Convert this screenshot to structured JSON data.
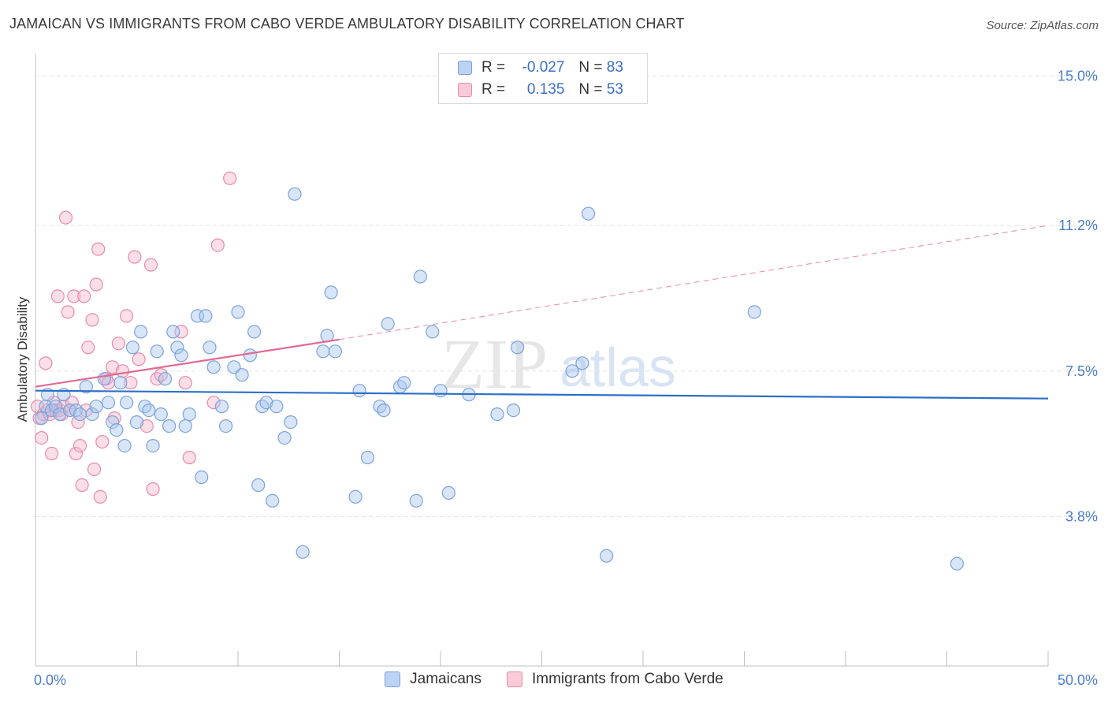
{
  "header": {
    "title": "JAMAICAN VS IMMIGRANTS FROM CABO VERDE AMBULATORY DISABILITY CORRELATION CHART",
    "source": "Source: ZipAtlas.com"
  },
  "legend": {
    "rows": [
      {
        "r_label": "R =",
        "r_value": "-0.027",
        "n_label": "N =",
        "n_value": "83"
      },
      {
        "r_label": "R =",
        "r_value": "0.135",
        "n_label": "N =",
        "n_value": "53"
      }
    ],
    "bottom": [
      "Jamaicans",
      "Immigrants from Cabo Verde"
    ]
  },
  "colors": {
    "blue_fill": "#a9c6ee",
    "blue_stroke": "#7aa3dc",
    "blue_line": "#2c6fc7",
    "pink_fill": "#f6b8cc",
    "pink_stroke": "#e88aa9",
    "pink_line": "#e06a94",
    "grid": "#e3e3e3",
    "tick_text": "#4a7cc9"
  },
  "watermark": {
    "zip": "ZIP",
    "atlas": "atlas"
  },
  "chart_data": {
    "type": "scatter",
    "title": "JAMAICAN VS IMMIGRANTS FROM CABO VERDE AMBULATORY DISABILITY CORRELATION CHART",
    "xlabel": "",
    "ylabel": "Ambulatory Disability",
    "xlim": [
      0,
      50
    ],
    "ylim": [
      0,
      15
    ],
    "x_tick_labels": [
      "0.0%",
      "50.0%"
    ],
    "y_ticks": [
      3.8,
      7.5,
      11.2,
      15.0
    ],
    "y_tick_labels": [
      "3.8%",
      "7.5%",
      "11.2%",
      "15.0%"
    ],
    "grid": true,
    "legend_position": "top-center",
    "series": [
      {
        "name": "Jamaicans",
        "color": "#a9c6ee",
        "r": -0.027,
        "n": 83,
        "trend": {
          "x": [
            0,
            50
          ],
          "y": [
            7.0,
            6.8
          ]
        },
        "points": [
          [
            0.3,
            6.3
          ],
          [
            0.5,
            6.6
          ],
          [
            0.6,
            6.9
          ],
          [
            0.8,
            6.5
          ],
          [
            1.0,
            6.6
          ],
          [
            1.2,
            6.4
          ],
          [
            1.4,
            6.9
          ],
          [
            1.7,
            6.5
          ],
          [
            2.0,
            6.5
          ],
          [
            2.2,
            6.4
          ],
          [
            2.5,
            7.1
          ],
          [
            2.8,
            6.4
          ],
          [
            3.0,
            6.6
          ],
          [
            3.4,
            7.3
          ],
          [
            3.6,
            6.7
          ],
          [
            3.8,
            6.2
          ],
          [
            4.0,
            6.0
          ],
          [
            4.2,
            7.2
          ],
          [
            4.4,
            5.6
          ],
          [
            4.5,
            6.7
          ],
          [
            4.8,
            8.1
          ],
          [
            5.0,
            6.2
          ],
          [
            5.2,
            8.5
          ],
          [
            5.4,
            6.6
          ],
          [
            5.6,
            6.5
          ],
          [
            5.8,
            5.6
          ],
          [
            6.0,
            8.0
          ],
          [
            6.2,
            6.4
          ],
          [
            6.4,
            7.3
          ],
          [
            6.6,
            6.1
          ],
          [
            6.8,
            8.5
          ],
          [
            7.0,
            8.1
          ],
          [
            7.2,
            7.9
          ],
          [
            7.4,
            6.1
          ],
          [
            7.6,
            6.4
          ],
          [
            8.0,
            8.9
          ],
          [
            8.2,
            4.8
          ],
          [
            8.4,
            8.9
          ],
          [
            8.6,
            8.1
          ],
          [
            8.8,
            7.6
          ],
          [
            9.2,
            6.6
          ],
          [
            9.4,
            6.1
          ],
          [
            9.8,
            7.6
          ],
          [
            10.0,
            9.0
          ],
          [
            10.2,
            7.4
          ],
          [
            10.6,
            7.9
          ],
          [
            10.8,
            8.5
          ],
          [
            11.0,
            4.6
          ],
          [
            11.2,
            6.6
          ],
          [
            11.4,
            6.7
          ],
          [
            11.7,
            4.2
          ],
          [
            11.9,
            6.6
          ],
          [
            12.3,
            5.8
          ],
          [
            12.6,
            6.2
          ],
          [
            12.8,
            12.0
          ],
          [
            13.2,
            2.9
          ],
          [
            14.2,
            8.0
          ],
          [
            14.4,
            8.4
          ],
          [
            14.6,
            9.5
          ],
          [
            14.8,
            8.0
          ],
          [
            15.8,
            4.3
          ],
          [
            16.0,
            7.0
          ],
          [
            16.4,
            5.3
          ],
          [
            17.0,
            6.6
          ],
          [
            17.2,
            6.5
          ],
          [
            17.4,
            8.7
          ],
          [
            18.0,
            7.1
          ],
          [
            18.2,
            7.2
          ],
          [
            18.8,
            4.2
          ],
          [
            19.0,
            9.9
          ],
          [
            19.6,
            8.5
          ],
          [
            20.0,
            7.0
          ],
          [
            20.4,
            4.4
          ],
          [
            21.4,
            6.9
          ],
          [
            22.8,
            6.4
          ],
          [
            23.6,
            6.5
          ],
          [
            23.8,
            8.1
          ],
          [
            26.5,
            7.5
          ],
          [
            27.0,
            7.7
          ],
          [
            27.3,
            11.5
          ],
          [
            28.2,
            2.8
          ],
          [
            35.5,
            9.0
          ],
          [
            45.5,
            2.6
          ]
        ]
      },
      {
        "name": "Immigrants from Cabo Verde",
        "color": "#f6b8cc",
        "r": 0.135,
        "n": 53,
        "trend": {
          "x": [
            0,
            15
          ],
          "y": [
            7.1,
            8.3
          ]
        },
        "trend_extended": {
          "x": [
            15,
            50
          ],
          "y": [
            8.3,
            11.2
          ]
        },
        "points": [
          [
            0.1,
            6.6
          ],
          [
            0.2,
            6.3
          ],
          [
            0.3,
            5.8
          ],
          [
            0.4,
            6.4
          ],
          [
            0.5,
            7.7
          ],
          [
            0.6,
            6.5
          ],
          [
            0.7,
            6.4
          ],
          [
            0.8,
            5.4
          ],
          [
            0.9,
            6.7
          ],
          [
            1.0,
            6.5
          ],
          [
            1.1,
            9.4
          ],
          [
            1.2,
            6.5
          ],
          [
            1.3,
            6.4
          ],
          [
            1.4,
            6.6
          ],
          [
            1.5,
            11.4
          ],
          [
            1.6,
            9.0
          ],
          [
            1.7,
            6.5
          ],
          [
            1.8,
            6.7
          ],
          [
            1.9,
            9.4
          ],
          [
            2.0,
            5.4
          ],
          [
            2.1,
            6.2
          ],
          [
            2.2,
            5.6
          ],
          [
            2.3,
            4.6
          ],
          [
            2.4,
            9.4
          ],
          [
            2.5,
            6.5
          ],
          [
            2.6,
            8.1
          ],
          [
            2.8,
            8.8
          ],
          [
            2.9,
            5.0
          ],
          [
            3.0,
            9.7
          ],
          [
            3.1,
            10.6
          ],
          [
            3.2,
            4.3
          ],
          [
            3.3,
            5.7
          ],
          [
            3.5,
            7.3
          ],
          [
            3.6,
            7.2
          ],
          [
            3.8,
            7.6
          ],
          [
            3.9,
            6.3
          ],
          [
            4.1,
            8.2
          ],
          [
            4.3,
            7.5
          ],
          [
            4.5,
            8.9
          ],
          [
            4.7,
            7.2
          ],
          [
            4.9,
            10.4
          ],
          [
            5.1,
            7.8
          ],
          [
            5.5,
            6.1
          ],
          [
            5.7,
            10.2
          ],
          [
            5.8,
            4.5
          ],
          [
            6.0,
            7.3
          ],
          [
            6.2,
            7.4
          ],
          [
            7.2,
            8.5
          ],
          [
            7.4,
            7.2
          ],
          [
            7.6,
            5.3
          ],
          [
            8.8,
            6.7
          ],
          [
            9.0,
            10.7
          ],
          [
            9.6,
            12.4
          ]
        ]
      }
    ]
  }
}
